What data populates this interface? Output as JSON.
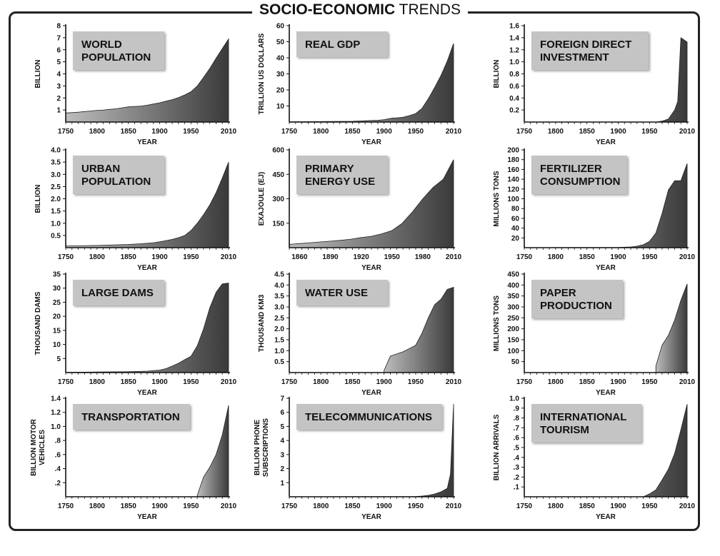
{
  "page": {
    "title_bold": "SOCIO-ECONOMIC",
    "title_rest": "TRENDS"
  },
  "colors": {
    "area_dark": "#3a3a3a",
    "area_light": "#bdbdbd",
    "label_box": "#c4c4c4",
    "axis": "#111111"
  },
  "chart_data": [
    {
      "type": "area",
      "title_lines": [
        "WORLD",
        "POPULATION"
      ],
      "ylabel_lines": [
        "BILLION"
      ],
      "xlabel": "YEAR",
      "xlim": [
        1750,
        2010
      ],
      "xticks": [
        1750,
        1800,
        1850,
        1900,
        1950,
        2010
      ],
      "xtick_labels": [
        "1750",
        "1800",
        "1850",
        "1900",
        "1950",
        "2010"
      ],
      "ylim": [
        0,
        8
      ],
      "yticks": [
        1,
        2,
        3,
        4,
        5,
        6,
        7,
        8
      ],
      "ytick_labels": [
        "1",
        "2",
        "3",
        "4",
        "5",
        "6",
        "7",
        "8"
      ],
      "x": [
        1750,
        1760,
        1770,
        1780,
        1790,
        1800,
        1810,
        1820,
        1830,
        1840,
        1850,
        1860,
        1870,
        1880,
        1890,
        1900,
        1910,
        1920,
        1930,
        1940,
        1950,
        1960,
        1970,
        1980,
        1990,
        2000,
        2010
      ],
      "y": [
        0.75,
        0.78,
        0.82,
        0.87,
        0.92,
        0.97,
        1.0,
        1.05,
        1.1,
        1.18,
        1.26,
        1.3,
        1.33,
        1.4,
        1.5,
        1.6,
        1.73,
        1.86,
        2.03,
        2.25,
        2.52,
        3.0,
        3.7,
        4.45,
        5.3,
        6.1,
        6.9
      ]
    },
    {
      "type": "area",
      "title_lines": [
        "REAL GDP"
      ],
      "ylabel_lines": [
        "TRILLION US DOLLARS"
      ],
      "xlabel": "YEAR",
      "xlim": [
        1750,
        2010
      ],
      "xticks": [
        1750,
        1800,
        1850,
        1900,
        1950,
        2010
      ],
      "xtick_labels": [
        "1750",
        "1800",
        "1850",
        "1900",
        "1950",
        "2010"
      ],
      "ylim": [
        0,
        60
      ],
      "yticks": [
        10,
        20,
        30,
        40,
        50,
        60
      ],
      "ytick_labels": [
        "10",
        "20",
        "30",
        "40",
        "50",
        "60"
      ],
      "x": [
        1750,
        1800,
        1850,
        1870,
        1890,
        1900,
        1913,
        1920,
        1930,
        1940,
        1950,
        1960,
        1970,
        1980,
        1990,
        2000,
        2010
      ],
      "y": [
        0.2,
        0.3,
        0.5,
        0.8,
        1.1,
        1.5,
        2.5,
        2.6,
        3.0,
        4.0,
        5.3,
        8.5,
        14.5,
        21.5,
        29,
        38,
        49
      ]
    },
    {
      "type": "area",
      "title_lines": [
        "FOREIGN DIRECT",
        "INVESTMENT"
      ],
      "ylabel_lines": [
        "BILLION"
      ],
      "xlabel": "YEAR",
      "xlim": [
        1750,
        2010
      ],
      "xticks": [
        1750,
        1800,
        1850,
        1900,
        1950,
        2010
      ],
      "xtick_labels": [
        "1750",
        "1800",
        "1850",
        "1900",
        "1950",
        "2010"
      ],
      "ylim": [
        0,
        1.6
      ],
      "yticks": [
        0.2,
        0.4,
        0.6,
        0.8,
        1.0,
        1.2,
        1.4,
        1.6
      ],
      "ytick_labels": [
        "0.2",
        "0.4",
        "0.6",
        "0.8",
        "1.0",
        "1.2",
        "1.4",
        "1.6"
      ],
      "x": [
        1750,
        1960,
        1970,
        1980,
        1990,
        1995,
        2000,
        2010
      ],
      "y": [
        0,
        0.0,
        0.015,
        0.05,
        0.2,
        0.34,
        1.4,
        1.33
      ]
    },
    {
      "type": "area",
      "title_lines": [
        "URBAN",
        "POPULATION"
      ],
      "ylabel_lines": [
        "BILLION"
      ],
      "xlabel": "YEAR",
      "xlim": [
        1750,
        2010
      ],
      "xticks": [
        1750,
        1800,
        1850,
        1900,
        1950,
        2010
      ],
      "xtick_labels": [
        "1750",
        "1800",
        "1850",
        "1900",
        "1950",
        "2010"
      ],
      "ylim": [
        0,
        4
      ],
      "yticks": [
        0.5,
        1.0,
        1.5,
        2.0,
        2.5,
        3.0,
        3.5,
        4.0
      ],
      "ytick_labels": [
        "0.5",
        "1.0",
        "1.5",
        "2.0",
        "2.5",
        "3.0",
        "3.5",
        "4.0"
      ],
      "x": [
        1750,
        1800,
        1850,
        1870,
        1890,
        1900,
        1910,
        1920,
        1930,
        1940,
        1950,
        1960,
        1970,
        1980,
        1990,
        2000,
        2010
      ],
      "y": [
        0.07,
        0.09,
        0.13,
        0.16,
        0.2,
        0.24,
        0.29,
        0.34,
        0.41,
        0.5,
        0.7,
        1.0,
        1.35,
        1.75,
        2.25,
        2.85,
        3.5
      ]
    },
    {
      "type": "area",
      "title_lines": [
        "PRIMARY",
        "ENERGY USE"
      ],
      "ylabel_lines": [
        "EXAJOULE (EJ)"
      ],
      "xlabel": "YEAR",
      "xlim": [
        1850,
        2010
      ],
      "xticks": [
        1860,
        1890,
        1920,
        1950,
        1980,
        2010
      ],
      "xtick_labels": [
        "1860",
        "1890",
        "1920",
        "1950",
        "1980",
        "2010"
      ],
      "ylim": [
        0,
        600
      ],
      "yticks": [
        150,
        300,
        450,
        600
      ],
      "ytick_labels": [
        "150",
        "300",
        "450",
        "600"
      ],
      "x": [
        1850,
        1860,
        1870,
        1880,
        1890,
        1900,
        1910,
        1920,
        1930,
        1940,
        1950,
        1960,
        1970,
        1980,
        1990,
        2000,
        2010
      ],
      "y": [
        20,
        25,
        30,
        35,
        40,
        45,
        52,
        62,
        70,
        85,
        105,
        150,
        220,
        300,
        370,
        420,
        540
      ]
    },
    {
      "type": "area",
      "title_lines": [
        "FERTILIZER",
        "CONSUMPTION"
      ],
      "ylabel_lines": [
        "MILLIONS TONS"
      ],
      "xlabel": "YEAR",
      "xlim": [
        1750,
        2010
      ],
      "xticks": [
        1750,
        1800,
        1850,
        1900,
        1950,
        2010
      ],
      "xtick_labels": [
        "1750",
        "1800",
        "1850",
        "1900",
        "1950",
        "2010"
      ],
      "ylim": [
        0,
        200
      ],
      "yticks": [
        20,
        40,
        60,
        80,
        100,
        120,
        140,
        160,
        180,
        200
      ],
      "ytick_labels": [
        "20",
        "40",
        "60",
        "80",
        "100",
        "120",
        "140",
        "160",
        "180",
        "200"
      ],
      "x": [
        1750,
        1900,
        1920,
        1930,
        1940,
        1950,
        1960,
        1970,
        1980,
        1990,
        2000,
        2010
      ],
      "y": [
        0,
        0.5,
        1.5,
        3,
        6,
        13,
        30,
        70,
        118,
        137,
        137,
        172
      ]
    },
    {
      "type": "area",
      "title_lines": [
        "LARGE DAMS"
      ],
      "ylabel_lines": [
        "THOUSAND DAMS"
      ],
      "xlabel": "YEAR",
      "xlim": [
        1750,
        2010
      ],
      "xticks": [
        1750,
        1800,
        1850,
        1900,
        1950,
        2010
      ],
      "xtick_labels": [
        "1750",
        "1800",
        "1850",
        "1900",
        "1950",
        "2010"
      ],
      "ylim": [
        0,
        35
      ],
      "yticks": [
        5,
        10,
        15,
        20,
        25,
        30,
        35
      ],
      "ytick_labels": [
        "5",
        "10",
        "15",
        "20",
        "25",
        "30",
        "35"
      ],
      "x": [
        1750,
        1800,
        1850,
        1880,
        1900,
        1910,
        1920,
        1930,
        1940,
        1950,
        1960,
        1970,
        1980,
        1990,
        2000,
        2010
      ],
      "y": [
        0.1,
        0.2,
        0.3,
        0.5,
        0.9,
        1.4,
        2.3,
        3.3,
        4.6,
        5.8,
        9.5,
        15.5,
        23,
        28.5,
        31.5,
        31.8
      ]
    },
    {
      "type": "area",
      "title_lines": [
        "WATER USE"
      ],
      "ylabel_lines": [
        "THOUSAND KM3"
      ],
      "xlabel": "YEAR",
      "xlim": [
        1750,
        2010
      ],
      "xticks": [
        1750,
        1800,
        1850,
        1900,
        1950,
        2010
      ],
      "xtick_labels": [
        "1750",
        "1800",
        "1850",
        "1900",
        "1950",
        "2010"
      ],
      "ylim": [
        0,
        4.5
      ],
      "yticks": [
        0.5,
        1.0,
        1.5,
        2.0,
        2.5,
        3.0,
        3.5,
        4.0,
        4.5
      ],
      "ytick_labels": [
        "0.5",
        "1.0",
        "1.5",
        "2.0",
        "2.5",
        "3.0",
        "3.5",
        "4.0",
        "4.5"
      ],
      "x": [
        1900,
        1900,
        1910,
        1920,
        1930,
        1940,
        1950,
        1960,
        1970,
        1980,
        1990,
        2000,
        2010
      ],
      "y": [
        0,
        0.1,
        0.75,
        0.85,
        0.95,
        1.1,
        1.25,
        1.8,
        2.5,
        3.1,
        3.35,
        3.8,
        3.9
      ]
    },
    {
      "type": "area",
      "title_lines": [
        "PAPER",
        "PRODUCTION"
      ],
      "ylabel_lines": [
        "MILLIONS TONS"
      ],
      "xlabel": "YEAR",
      "xlim": [
        1750,
        2010
      ],
      "xticks": [
        1750,
        1800,
        1850,
        1900,
        1950,
        2010
      ],
      "xtick_labels": [
        "1750",
        "1800",
        "1850",
        "1900",
        "1950",
        "2010"
      ],
      "ylim": [
        0,
        450
      ],
      "yticks": [
        50,
        100,
        150,
        200,
        250,
        300,
        350,
        400,
        450
      ],
      "ytick_labels": [
        "50",
        "100",
        "150",
        "200",
        "250",
        "300",
        "350",
        "400",
        "450"
      ],
      "x": [
        1960,
        1960,
        1970,
        1980,
        1990,
        2000,
        2010
      ],
      "y": [
        0,
        30,
        125,
        170,
        240,
        330,
        405
      ]
    },
    {
      "type": "area",
      "title_lines": [
        "TRANSPORTATION"
      ],
      "ylabel_lines": [
        "BILLION MOTOR",
        "VEHICLES"
      ],
      "xlabel": "YEAR",
      "xlim": [
        1750,
        2010
      ],
      "xticks": [
        1750,
        1800,
        1850,
        1900,
        1950,
        2010
      ],
      "xtick_labels": [
        "1750",
        "1800",
        "1850",
        "1900",
        "1950",
        "2010"
      ],
      "ylim": [
        0,
        1.4
      ],
      "yticks": [
        0.2,
        0.4,
        0.6,
        0.8,
        1.0,
        1.2,
        1.4
      ],
      "ytick_labels": [
        ".2",
        ".4",
        ".6",
        ".8",
        "1.0",
        "1.2",
        "1.4"
      ],
      "x": [
        1960,
        1960,
        1970,
        1980,
        1990,
        2000,
        2010
      ],
      "y": [
        0,
        0.02,
        0.28,
        0.42,
        0.6,
        0.88,
        1.3
      ]
    },
    {
      "type": "area",
      "title_lines": [
        "TELECOMMUNICATIONS"
      ],
      "ylabel_lines": [
        "BILLION PHONE",
        "SUBSCRIPTIONS"
      ],
      "xlabel": "YEAR",
      "xlim": [
        1750,
        2010
      ],
      "xticks": [
        1750,
        1800,
        1850,
        1900,
        1950,
        2010
      ],
      "xtick_labels": [
        "1750",
        "1800",
        "1850",
        "1900",
        "1950",
        "2010"
      ],
      "ylim": [
        0,
        7
      ],
      "yticks": [
        1,
        2,
        3,
        4,
        5,
        6,
        7
      ],
      "ytick_labels": [
        "1",
        "2",
        "3",
        "4",
        "5",
        "6",
        "7"
      ],
      "x": [
        1750,
        1950,
        1960,
        1970,
        1980,
        1990,
        2000,
        2005,
        2010
      ],
      "y": [
        0,
        0.02,
        0.05,
        0.1,
        0.2,
        0.35,
        0.6,
        1.6,
        6.6
      ]
    },
    {
      "type": "area",
      "title_lines": [
        "INTERNATIONAL",
        "TOURISM"
      ],
      "ylabel_lines": [
        "BILLION ARRIVALS"
      ],
      "xlabel": "YEAR",
      "xlim": [
        1750,
        2010
      ],
      "xticks": [
        1750,
        1800,
        1850,
        1900,
        1950,
        2010
      ],
      "xtick_labels": [
        "1750",
        "1800",
        "1850",
        "1900",
        "1950",
        "2010"
      ],
      "ylim": [
        0,
        1.0
      ],
      "yticks": [
        0.1,
        0.2,
        0.3,
        0.4,
        0.5,
        0.6,
        0.7,
        0.8,
        0.9,
        1.0
      ],
      "ytick_labels": [
        ".1",
        ".2",
        ".3",
        ".4",
        ".5",
        ".6",
        ".7",
        ".8",
        ".9",
        "1.0"
      ],
      "x": [
        1750,
        1940,
        1950,
        1960,
        1970,
        1980,
        1990,
        2000,
        2010
      ],
      "y": [
        0,
        0.0,
        0.03,
        0.07,
        0.17,
        0.28,
        0.44,
        0.68,
        0.94
      ]
    }
  ]
}
